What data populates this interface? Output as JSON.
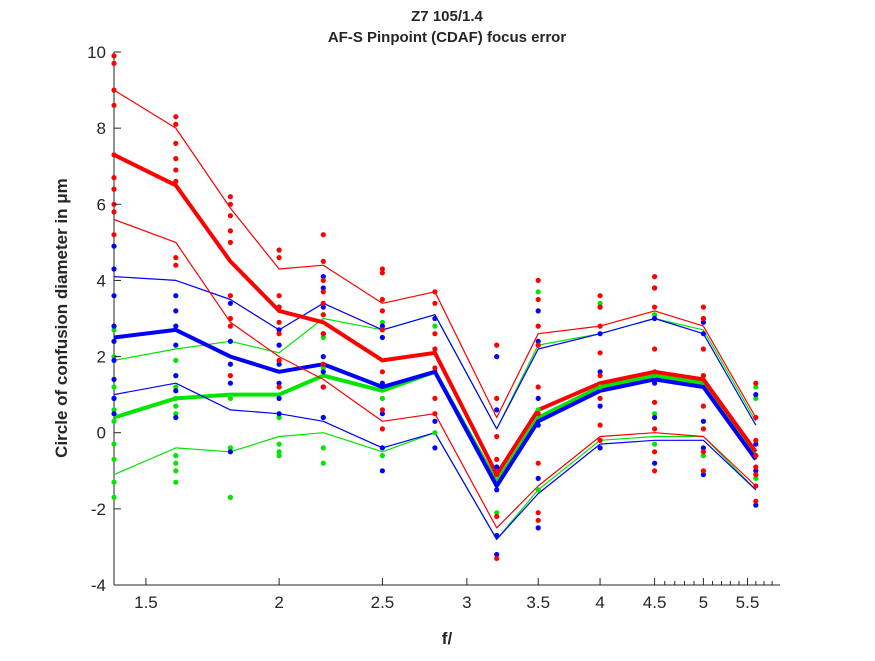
{
  "chart_data": {
    "type": "scatter",
    "title": "Z7 105/1.4",
    "subtitle": "AF-S Pinpoint (CDAF) focus error",
    "xlabel": "f/",
    "ylabel": "Circle of confusion diameter in μm",
    "x_scale": "log",
    "xlim": [
      1.4,
      5.9
    ],
    "ylim": [
      -4,
      10
    ],
    "x_ticks": [
      1.5,
      2,
      2.5,
      3,
      3.5,
      4,
      4.5,
      5,
      5.5
    ],
    "x_tick_labels": [
      "1.5",
      "2",
      "2.5",
      "3",
      "3.5",
      "4",
      "4.5",
      "5",
      "5.5"
    ],
    "x_minor_ticks": [
      4.6,
      4.7,
      4.8,
      4.9,
      5.1,
      5.2,
      5.3,
      5.4,
      5.6,
      5.7,
      5.8
    ],
    "y_ticks": [
      -4,
      -2,
      0,
      2,
      4,
      6,
      8,
      10
    ],
    "y_tick_labels": [
      "-4",
      "-2",
      "0",
      "2",
      "4",
      "6",
      "8",
      "10"
    ],
    "grid": false,
    "x": [
      1.4,
      1.6,
      1.8,
      2.0,
      2.2,
      2.5,
      2.8,
      3.2,
      3.5,
      4.0,
      4.5,
      5.0,
      5.6
    ],
    "series": [
      {
        "color": "#00e600",
        "width": 1.2,
        "values": [
          1.9,
          2.2,
          2.4,
          2.1,
          3.0,
          2.7,
          3.1,
          0.1,
          2.3,
          2.6,
          3.0,
          2.7,
          0.3
        ]
      },
      {
        "color": "#00e600",
        "width": 4,
        "values": [
          0.4,
          0.9,
          1.0,
          1.0,
          1.5,
          1.1,
          1.6,
          -1.3,
          0.4,
          1.2,
          1.5,
          1.3,
          -0.6
        ]
      },
      {
        "color": "#00e600",
        "width": 1.2,
        "values": [
          -1.1,
          -0.4,
          -0.5,
          -0.1,
          0.0,
          -0.5,
          0.0,
          -2.8,
          -1.5,
          -0.2,
          -0.1,
          -0.1,
          -1.5
        ]
      },
      {
        "color": "#0000ff",
        "width": 1.2,
        "values": [
          4.1,
          4.0,
          3.5,
          2.7,
          3.4,
          2.7,
          3.1,
          0.1,
          2.2,
          2.6,
          3.0,
          2.6,
          0.2
        ]
      },
      {
        "color": "#0000ff",
        "width": 4,
        "values": [
          2.5,
          2.7,
          2.0,
          1.6,
          1.8,
          1.2,
          1.6,
          -1.4,
          0.3,
          1.1,
          1.4,
          1.2,
          -0.7
        ]
      },
      {
        "color": "#0000ff",
        "width": 1.2,
        "values": [
          1.0,
          1.3,
          0.6,
          0.5,
          0.3,
          -0.4,
          0.0,
          -2.8,
          -1.6,
          -0.3,
          -0.2,
          -0.2,
          -1.5
        ]
      },
      {
        "color": "#ff0000",
        "width": 1.2,
        "values": [
          9.0,
          8.0,
          5.9,
          4.3,
          4.4,
          3.4,
          3.7,
          0.4,
          2.6,
          2.8,
          3.2,
          2.8,
          0.4
        ]
      },
      {
        "color": "#ff0000",
        "width": 4,
        "values": [
          7.3,
          6.5,
          4.5,
          3.2,
          2.9,
          1.9,
          2.1,
          -1.1,
          0.6,
          1.3,
          1.6,
          1.4,
          -0.5
        ]
      },
      {
        "color": "#ff0000",
        "width": 1.2,
        "values": [
          5.6,
          5.0,
          2.9,
          2.0,
          1.4,
          0.3,
          0.5,
          -2.5,
          -1.4,
          -0.1,
          0.0,
          -0.1,
          -1.4
        ]
      }
    ],
    "points": [
      {
        "color": "#00e600",
        "x": 1.4,
        "y": [
          2.7,
          2.4,
          2.0,
          1.2,
          0.9,
          0.6,
          0.3,
          -0.3,
          -0.7,
          -1.3,
          -1.7
        ]
      },
      {
        "color": "#00e600",
        "x": 1.6,
        "y": [
          1.9,
          1.5,
          1.2,
          0.9,
          0.7,
          0.5,
          -0.6,
          -0.8,
          -1.0,
          -1.3
        ]
      },
      {
        "color": "#00e600",
        "x": 1.8,
        "y": [
          2.4,
          1.8,
          0.9,
          -0.4,
          -1.7
        ]
      },
      {
        "color": "#00e600",
        "x": 2.0,
        "y": [
          2.3,
          1.8,
          0.9,
          0.4,
          -0.3,
          -0.5,
          -0.6
        ]
      },
      {
        "color": "#00e600",
        "x": 2.2,
        "y": [
          3.1,
          2.5,
          1.7,
          0.4,
          -0.4,
          -0.8
        ]
      },
      {
        "color": "#00e600",
        "x": 2.5,
        "y": [
          2.9,
          0.9,
          -0.6
        ]
      },
      {
        "color": "#00e600",
        "x": 2.8,
        "y": [
          2.8,
          1.6,
          0.0
        ]
      },
      {
        "color": "#00e600",
        "x": 3.2,
        "y": [
          -0.9,
          -2.1
        ]
      },
      {
        "color": "#00e600",
        "x": 3.5,
        "y": [
          3.7,
          2.3,
          0.6,
          -1.5
        ]
      },
      {
        "color": "#00e600",
        "x": 4.0,
        "y": [
          3.4,
          1.2,
          -0.2
        ]
      },
      {
        "color": "#00e600",
        "x": 4.5,
        "y": [
          3.1,
          1.5,
          0.5,
          -0.3
        ]
      },
      {
        "color": "#00e600",
        "x": 5.0,
        "y": [
          3.0,
          1.5,
          -0.6
        ]
      },
      {
        "color": "#00e600",
        "x": 5.6,
        "y": [
          1.2,
          0.9,
          -0.6,
          -1.2
        ]
      },
      {
        "color": "#0000ff",
        "x": 1.4,
        "y": [
          4.9,
          4.3,
          3.6,
          2.8,
          2.4,
          1.9,
          1.4,
          0.9,
          0.5
        ]
      },
      {
        "color": "#0000ff",
        "x": 1.6,
        "y": [
          3.6,
          3.2,
          2.8,
          2.3,
          1.5,
          1.1,
          0.4
        ]
      },
      {
        "color": "#0000ff",
        "x": 1.8,
        "y": [
          3.4,
          2.4,
          1.8,
          1.3,
          -0.5
        ]
      },
      {
        "color": "#0000ff",
        "x": 2.0,
        "y": [
          3.3,
          2.7,
          2.3,
          1.8,
          1.3,
          0.9,
          0.5
        ]
      },
      {
        "color": "#0000ff",
        "x": 2.2,
        "y": [
          4.1,
          3.8,
          3.3,
          2.6,
          2.0,
          1.6,
          1.2,
          0.4
        ]
      },
      {
        "color": "#0000ff",
        "x": 2.5,
        "y": [
          2.8,
          2.5,
          1.3,
          0.5,
          -0.4,
          -1.0
        ]
      },
      {
        "color": "#0000ff",
        "x": 2.8,
        "y": [
          3.0,
          1.6,
          0.3,
          -0.4
        ]
      },
      {
        "color": "#0000ff",
        "x": 3.2,
        "y": [
          2.0,
          0.6,
          -0.9,
          -1.5,
          -2.7,
          -3.2
        ]
      },
      {
        "color": "#0000ff",
        "x": 3.5,
        "y": [
          3.2,
          2.4,
          0.9,
          0.2,
          -1.2,
          -2.5
        ]
      },
      {
        "color": "#0000ff",
        "x": 4.0,
        "y": [
          3.3,
          2.6,
          1.6,
          0.7,
          -0.4
        ]
      },
      {
        "color": "#0000ff",
        "x": 4.5,
        "y": [
          3.8,
          3.0,
          1.3,
          0.4,
          -0.8
        ]
      },
      {
        "color": "#0000ff",
        "x": 5.0,
        "y": [
          2.9,
          2.6,
          0.3,
          -0.4,
          -1.1
        ]
      },
      {
        "color": "#0000ff",
        "x": 5.6,
        "y": [
          1.0,
          -0.3,
          -1.0,
          -1.9
        ]
      },
      {
        "color": "#ff0000",
        "x": 1.4,
        "y": [
          9.9,
          9.7,
          9.0,
          8.6,
          7.3,
          6.7,
          6.4,
          6.0,
          5.8,
          5.2
        ]
      },
      {
        "color": "#ff0000",
        "x": 1.6,
        "y": [
          8.3,
          8.1,
          7.6,
          7.2,
          6.9,
          6.6,
          4.6,
          4.4
        ]
      },
      {
        "color": "#ff0000",
        "x": 1.8,
        "y": [
          6.2,
          6.0,
          5.7,
          5.3,
          5.0,
          3.6,
          3.0,
          2.8,
          1.5
        ]
      },
      {
        "color": "#ff0000",
        "x": 2.0,
        "y": [
          4.8,
          4.6,
          3.6,
          3.3,
          2.9,
          2.6,
          1.9,
          1.2
        ]
      },
      {
        "color": "#ff0000",
        "x": 2.2,
        "y": [
          5.2,
          4.5,
          4.0,
          3.7,
          3.4,
          3.1,
          2.6,
          1.8,
          1.2
        ]
      },
      {
        "color": "#ff0000",
        "x": 2.5,
        "y": [
          4.3,
          4.2,
          3.5,
          3.2,
          2.7,
          1.6,
          0.6,
          0.1
        ]
      },
      {
        "color": "#ff0000",
        "x": 2.8,
        "y": [
          3.7,
          3.4,
          2.6,
          2.2,
          1.7,
          0.9,
          0.5
        ]
      },
      {
        "color": "#ff0000",
        "x": 3.2,
        "y": [
          2.3,
          0.9,
          -0.1,
          -0.7,
          -1.1,
          -2.2,
          -3.3
        ]
      },
      {
        "color": "#ff0000",
        "x": 3.5,
        "y": [
          4.0,
          3.5,
          2.8,
          2.3,
          1.2,
          0.5,
          -0.8,
          -2.1,
          -2.3
        ]
      },
      {
        "color": "#ff0000",
        "x": 4.0,
        "y": [
          3.6,
          3.3,
          2.8,
          2.1,
          1.5,
          0.9,
          0.2,
          -0.2
        ]
      },
      {
        "color": "#ff0000",
        "x": 4.5,
        "y": [
          4.1,
          3.8,
          3.3,
          2.2,
          1.6,
          0.8,
          0.1,
          -0.5,
          -1.0
        ]
      },
      {
        "color": "#ff0000",
        "x": 5.0,
        "y": [
          3.3,
          3.0,
          2.2,
          1.5,
          0.7,
          0.1,
          -0.5,
          -1.0
        ]
      },
      {
        "color": "#ff0000",
        "x": 5.6,
        "y": [
          1.3,
          0.4,
          -0.2,
          -0.6,
          -0.9,
          -1.1,
          -1.4,
          -1.8
        ]
      }
    ]
  }
}
